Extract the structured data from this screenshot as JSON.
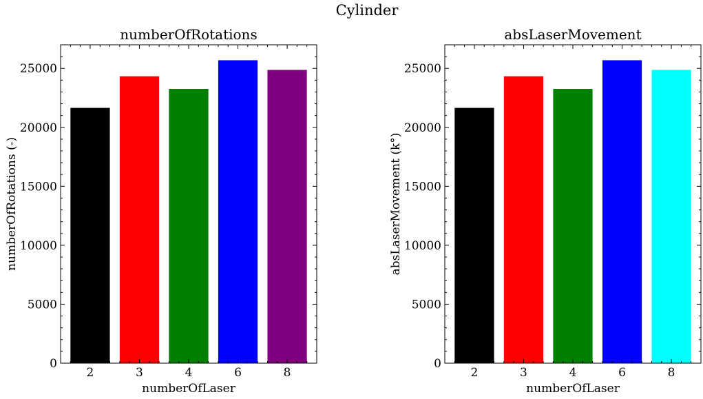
{
  "figure": {
    "suptitle": "Cylinder"
  },
  "chart_data": [
    {
      "type": "bar",
      "title": "numberOfRotations",
      "xlabel": "numberOfLaser",
      "ylabel": "numberOfRotations (-)",
      "categories": [
        "2",
        "3",
        "4",
        "6",
        "8"
      ],
      "values": [
        21650,
        24330,
        23260,
        25690,
        24870
      ],
      "colors": [
        "#000000",
        "#ff0000",
        "#008000",
        "#0000ff",
        "#800080"
      ],
      "ylim": [
        0,
        27000
      ],
      "yticks": [
        0,
        5000,
        10000,
        15000,
        20000,
        25000
      ],
      "grid": false
    },
    {
      "type": "bar",
      "title": "absLaserMovement",
      "xlabel": "numberOfLaser",
      "ylabel": "absLaserMovement (k°)",
      "categories": [
        "2",
        "3",
        "4",
        "6",
        "8"
      ],
      "values": [
        21650,
        24330,
        23260,
        25690,
        24870
      ],
      "colors": [
        "#000000",
        "#ff0000",
        "#008000",
        "#0000ff",
        "#00ffff"
      ],
      "ylim": [
        0,
        27000
      ],
      "yticks": [
        0,
        5000,
        10000,
        15000,
        20000,
        25000
      ],
      "grid": false
    }
  ]
}
